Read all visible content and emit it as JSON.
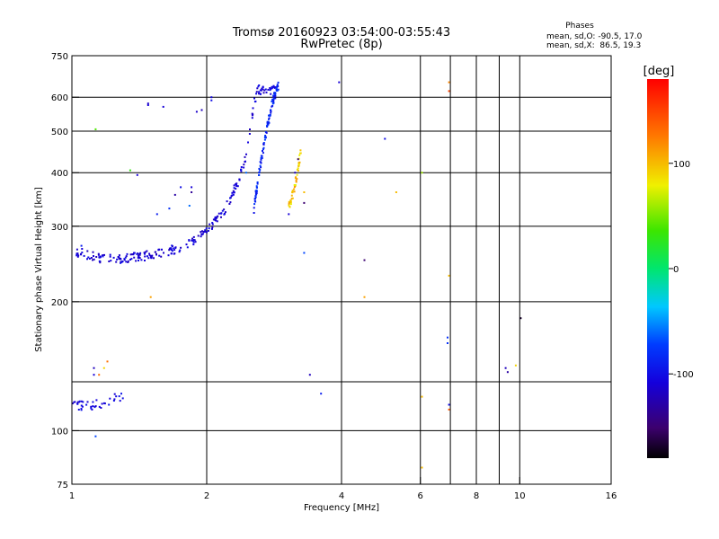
{
  "chart_data": {
    "type": "scatter",
    "title": "Tromsø 20160923 03:54:00-03:55:43",
    "subtitle": "RwPretec (8p)",
    "xlabel": "Frequency [MHz]",
    "ylabel": "Stationary phase Virtual Height [km]",
    "x_scale": "log",
    "y_scale": "log",
    "xlim": [
      1,
      16
    ],
    "ylim": [
      75,
      750
    ],
    "x_ticks": [
      1,
      2,
      4,
      6,
      8,
      10,
      16
    ],
    "x_tick_labels": [
      "1",
      "2",
      "4",
      "6",
      "8",
      "10",
      "16"
    ],
    "x_minor_ticks": [
      7,
      9
    ],
    "y_ticks": [
      75,
      100,
      200,
      300,
      400,
      500,
      600,
      750
    ],
    "y_tick_labels": [
      "75",
      "100",
      "200",
      "300",
      "400",
      "500",
      "600",
      "750"
    ],
    "y_extra_gridlines": [
      130
    ],
    "phases_legend": {
      "title": "Phases",
      "line_o": "mean, sd,O: -90.5, 17.0",
      "line_x": "mean, sd,X:  86.5, 19.3"
    },
    "colorbar": {
      "label": "[deg]",
      "range": [
        -180,
        180
      ],
      "ticks": [
        100,
        0,
        -100
      ],
      "tick_labels": [
        "100",
        "0",
        "-100"
      ],
      "colormap": "rainbow"
    },
    "traces": [
      {
        "kind": "band",
        "f_start": 1.02,
        "f_end": 2.85,
        "points": 260,
        "phase": -110,
        "spread": 12,
        "curve": [
          [
            1.02,
            262
          ],
          [
            1.15,
            253
          ],
          [
            1.3,
            252
          ],
          [
            1.5,
            257
          ],
          [
            1.7,
            265
          ],
          [
            1.9,
            280
          ],
          [
            2.05,
            300
          ],
          [
            2.2,
            330
          ],
          [
            2.35,
            380
          ],
          [
            2.45,
            440
          ],
          [
            2.5,
            500
          ],
          [
            2.55,
            580
          ],
          [
            2.6,
            625
          ]
        ]
      },
      {
        "kind": "band",
        "f_start": 2.55,
        "f_end": 2.9,
        "points": 110,
        "phase": -85,
        "spread": 15,
        "curve": [
          [
            2.55,
            330
          ],
          [
            2.6,
            380
          ],
          [
            2.65,
            430
          ],
          [
            2.7,
            480
          ],
          [
            2.75,
            530
          ],
          [
            2.8,
            580
          ],
          [
            2.85,
            615
          ],
          [
            2.9,
            640
          ]
        ]
      },
      {
        "kind": "band",
        "f_start": 3.05,
        "f_end": 3.25,
        "points": 45,
        "phase": 95,
        "spread": 20,
        "curve": [
          [
            3.05,
            335
          ],
          [
            3.1,
            350
          ],
          [
            3.15,
            375
          ],
          [
            3.2,
            410
          ],
          [
            3.25,
            455
          ]
        ]
      },
      {
        "kind": "band",
        "f_start": 1.0,
        "f_end": 1.3,
        "points": 40,
        "phase": -105,
        "spread": 10,
        "curve": [
          [
            1.0,
            115
          ],
          [
            1.1,
            114
          ],
          [
            1.2,
            117
          ],
          [
            1.3,
            121
          ]
        ]
      }
    ],
    "points": [
      {
        "x": 1.05,
        "y": 270,
        "phase": -90
      },
      {
        "x": 1.12,
        "y": 140,
        "phase": -120
      },
      {
        "x": 1.12,
        "y": 135,
        "phase": -110
      },
      {
        "x": 1.15,
        "y": 135,
        "phase": 130
      },
      {
        "x": 1.18,
        "y": 140,
        "phase": 90
      },
      {
        "x": 1.2,
        "y": 145,
        "phase": 130
      },
      {
        "x": 1.13,
        "y": 97,
        "phase": -70
      },
      {
        "x": 1.13,
        "y": 505,
        "phase": 40
      },
      {
        "x": 1.35,
        "y": 405,
        "phase": 30
      },
      {
        "x": 1.4,
        "y": 395,
        "phase": -110
      },
      {
        "x": 1.48,
        "y": 580,
        "phase": -115
      },
      {
        "x": 1.48,
        "y": 575,
        "phase": -110
      },
      {
        "x": 1.6,
        "y": 570,
        "phase": -110
      },
      {
        "x": 1.65,
        "y": 330,
        "phase": -80
      },
      {
        "x": 1.5,
        "y": 205,
        "phase": 110
      },
      {
        "x": 1.55,
        "y": 320,
        "phase": -90
      },
      {
        "x": 1.7,
        "y": 355,
        "phase": -130
      },
      {
        "x": 1.75,
        "y": 370,
        "phase": -100
      },
      {
        "x": 1.85,
        "y": 360,
        "phase": -135
      },
      {
        "x": 1.85,
        "y": 370,
        "phase": -110
      },
      {
        "x": 1.83,
        "y": 335,
        "phase": -60
      },
      {
        "x": 1.9,
        "y": 555,
        "phase": -115
      },
      {
        "x": 1.95,
        "y": 560,
        "phase": -120
      },
      {
        "x": 2.05,
        "y": 600,
        "phase": -105
      },
      {
        "x": 2.05,
        "y": 590,
        "phase": -100
      },
      {
        "x": 2.45,
        "y": 400,
        "phase": -60
      },
      {
        "x": 3.05,
        "y": 320,
        "phase": -110
      },
      {
        "x": 3.2,
        "y": 430,
        "phase": -150
      },
      {
        "x": 3.15,
        "y": 400,
        "phase": -120
      },
      {
        "x": 3.3,
        "y": 360,
        "phase": 100
      },
      {
        "x": 3.3,
        "y": 340,
        "phase": -150
      },
      {
        "x": 3.3,
        "y": 260,
        "phase": -70
      },
      {
        "x": 3.4,
        "y": 135,
        "phase": -120
      },
      {
        "x": 3.6,
        "y": 122,
        "phase": -90
      },
      {
        "x": 3.95,
        "y": 650,
        "phase": -110
      },
      {
        "x": 4.5,
        "y": 250,
        "phase": -150
      },
      {
        "x": 4.5,
        "y": 205,
        "phase": 110
      },
      {
        "x": 5.0,
        "y": 480,
        "phase": -100
      },
      {
        "x": 5.3,
        "y": 360,
        "phase": 100
      },
      {
        "x": 6.05,
        "y": 400,
        "phase": 60
      },
      {
        "x": 6.05,
        "y": 82,
        "phase": 100
      },
      {
        "x": 6.05,
        "y": 120,
        "phase": 100
      },
      {
        "x": 6.9,
        "y": 165,
        "phase": -80
      },
      {
        "x": 6.9,
        "y": 160,
        "phase": -80
      },
      {
        "x": 6.95,
        "y": 620,
        "phase": 150
      },
      {
        "x": 6.95,
        "y": 650,
        "phase": 120
      },
      {
        "x": 6.95,
        "y": 230,
        "phase": 100
      },
      {
        "x": 6.95,
        "y": 115,
        "phase": -100
      },
      {
        "x": 6.95,
        "y": 112,
        "phase": 140
      },
      {
        "x": 9.3,
        "y": 140,
        "phase": -120
      },
      {
        "x": 9.4,
        "y": 137,
        "phase": -130
      },
      {
        "x": 9.8,
        "y": 142,
        "phase": 90
      },
      {
        "x": 10.05,
        "y": 183,
        "phase": -170
      }
    ]
  }
}
